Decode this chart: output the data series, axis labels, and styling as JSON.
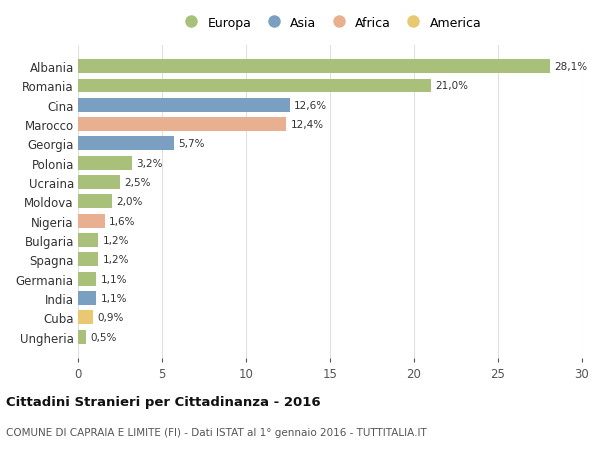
{
  "categories": [
    "Albania",
    "Romania",
    "Cina",
    "Marocco",
    "Georgia",
    "Polonia",
    "Ucraina",
    "Moldova",
    "Nigeria",
    "Bulgaria",
    "Spagna",
    "Germania",
    "India",
    "Cuba",
    "Ungheria"
  ],
  "values": [
    28.1,
    21.0,
    12.6,
    12.4,
    5.7,
    3.2,
    2.5,
    2.0,
    1.6,
    1.2,
    1.2,
    1.1,
    1.1,
    0.9,
    0.5
  ],
  "labels": [
    "28,1%",
    "21,0%",
    "12,6%",
    "12,4%",
    "5,7%",
    "3,2%",
    "2,5%",
    "2,0%",
    "1,6%",
    "1,2%",
    "1,2%",
    "1,1%",
    "1,1%",
    "0,9%",
    "0,5%"
  ],
  "continents": [
    "Europa",
    "Europa",
    "Asia",
    "Africa",
    "Asia",
    "Europa",
    "Europa",
    "Europa",
    "Africa",
    "Europa",
    "Europa",
    "Europa",
    "Asia",
    "America",
    "Europa"
  ],
  "colors": {
    "Europa": "#a8c07a",
    "Asia": "#7a9fc0",
    "Africa": "#e8b090",
    "America": "#e8c870"
  },
  "legend_labels": [
    "Europa",
    "Asia",
    "Africa",
    "America"
  ],
  "legend_colors": [
    "#a8c07a",
    "#7a9fc0",
    "#e8b090",
    "#e8c870"
  ],
  "xlim": [
    0,
    30
  ],
  "xticks": [
    0,
    5,
    10,
    15,
    20,
    25,
    30
  ],
  "title": "Cittadini Stranieri per Cittadinanza - 2016",
  "subtitle": "COMUNE DI CAPRAIA E LIMITE (FI) - Dati ISTAT al 1° gennaio 2016 - TUTTITALIA.IT",
  "background_color": "#ffffff",
  "grid_color": "#e0e0e0"
}
